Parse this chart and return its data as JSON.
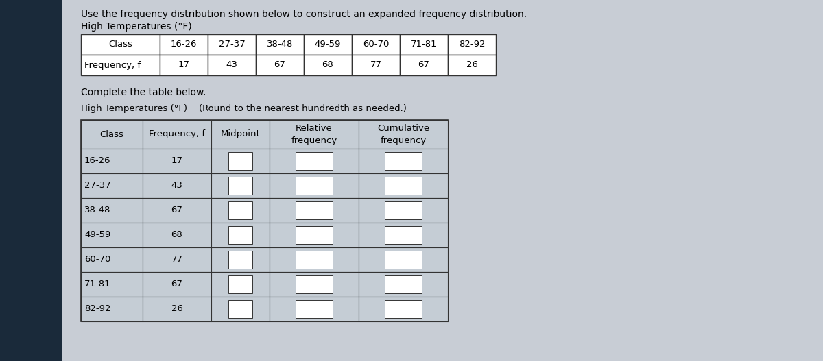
{
  "title_line1": "Use the frequency distribution shown below to construct an expanded frequency distribution.",
  "title_line2": "High Temperatures (°F)",
  "top_table_headers": [
    "Class",
    "16-26",
    "27-37",
    "38-48",
    "49-59",
    "60-70",
    "71-81",
    "82-92"
  ],
  "top_table_row": [
    "Frequency, f",
    "17",
    "43",
    "67",
    "68",
    "77",
    "67",
    "26"
  ],
  "complete_label": "Complete the table below.",
  "subtitle": "High Temperatures (°F)",
  "round_note": "(Round to the nearest hundredth as needed.)",
  "bot_headers": [
    "Class",
    "Frequency, f",
    "Midpoint",
    "Relative\nfrequency",
    "Cumulative\nfrequency"
  ],
  "classes": [
    "16-26",
    "27-37",
    "38-48",
    "49-59",
    "60-70",
    "71-81",
    "82-92"
  ],
  "frequencies": [
    "17",
    "43",
    "67",
    "68",
    "77",
    "67",
    "26"
  ],
  "left_panel_color": "#1a2a3a",
  "bg_color": "#c8cdd5",
  "table_bg_color": "#c5cdd5",
  "white": "#ffffff",
  "text_color": "#000000",
  "border_color": "#666666",
  "dark_border": "#333333"
}
